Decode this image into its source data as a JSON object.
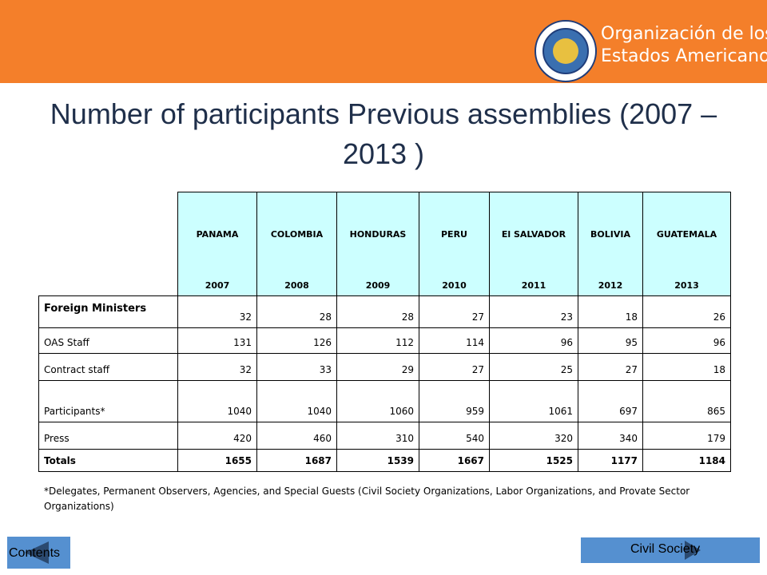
{
  "header": {
    "org_name_lines": [
      "Organización de los",
      "Estados Americanos"
    ]
  },
  "title": "Number of participants Previous assemblies (2007 – 2013 )",
  "table": {
    "columns": [
      {
        "country": "PANAMA",
        "year": "2007"
      },
      {
        "country": "COLOMBIA",
        "year": "2008"
      },
      {
        "country": "HONDURAS",
        "year": "2009"
      },
      {
        "country": "PERU",
        "year": "2010"
      },
      {
        "country": "El SALVADOR",
        "year": "2011"
      },
      {
        "country": "BOLIVIA",
        "year": "2012"
      },
      {
        "country": "GUATEMALA",
        "year": "2013"
      }
    ],
    "rows": [
      {
        "label": "Foreign Ministers",
        "values": [
          32,
          28,
          28,
          27,
          23,
          18,
          26
        ]
      },
      {
        "label": "OAS Staff",
        "values": [
          131,
          126,
          112,
          114,
          96,
          95,
          96
        ]
      },
      {
        "label": "Contract staff",
        "values": [
          32,
          33,
          29,
          27,
          25,
          27,
          18
        ]
      },
      {
        "label": "Participants*",
        "values": [
          1040,
          1040,
          1060,
          959,
          1061,
          697,
          865
        ]
      },
      {
        "label": "Press",
        "values": [
          420,
          460,
          310,
          540,
          320,
          340,
          179
        ]
      },
      {
        "label": "Totals",
        "values": [
          1655,
          1687,
          1539,
          1667,
          1525,
          1177,
          1184
        ]
      }
    ]
  },
  "footnote": "*Delegates, Permanent Observers, Agencies, and Special Guests (Civil Society Organizations, Labor Organizations, and Provate Sector Organizations)",
  "nav": {
    "contents": "Contents",
    "civil_society": "Civil Society"
  }
}
